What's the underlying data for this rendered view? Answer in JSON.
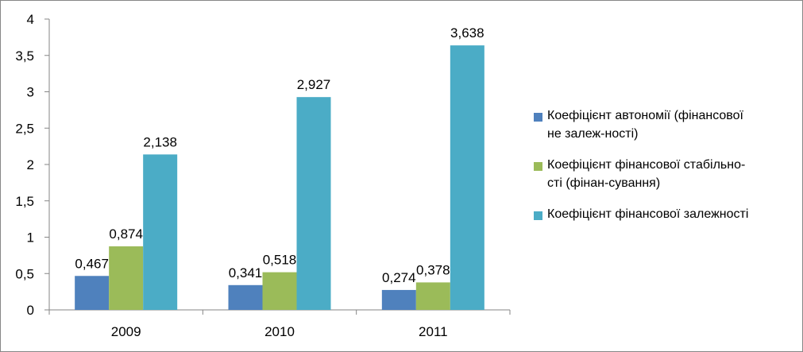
{
  "chart_data": {
    "type": "bar",
    "categories": [
      "2009",
      "2010",
      "2011"
    ],
    "series": [
      {
        "name": "Коефіцієнт автономії (фінансової не залеж-ності)",
        "values": [
          0.467,
          0.341,
          0.274
        ],
        "labels": [
          "0,467",
          "0,341",
          "0,274"
        ],
        "color": "#4F81BD"
      },
      {
        "name": "Коефіцієнт фінансової стабільно-сті (фінан-сування)",
        "values": [
          0.874,
          0.518,
          0.378
        ],
        "labels": [
          "0,874",
          "0,518",
          "0,378"
        ],
        "color": "#9BBB59"
      },
      {
        "name": "Коефіцієнт фінансової залежності",
        "values": [
          2.138,
          2.927,
          3.638
        ],
        "labels": [
          "2,138",
          "2,927",
          "3,638"
        ],
        "color": "#4BACC6"
      }
    ],
    "ylim": [
      0,
      4
    ],
    "yticks": [
      0,
      0.5,
      1,
      1.5,
      2,
      2.5,
      3,
      3.5,
      4
    ],
    "ytick_labels": [
      "0",
      "0,5",
      "1",
      "1,5",
      "2",
      "2,5",
      "3",
      "3,5",
      "4"
    ],
    "grid": false,
    "legend_position": "right",
    "legend_lines": [
      [
        "Коефіцієнт автономії (фінансової",
        "не залеж-ності)"
      ],
      [
        "Коефіцієнт фінансової стабільно-",
        "сті (фінан-сування)"
      ],
      [
        "Коефіцієнт фінансової залежності"
      ]
    ]
  }
}
